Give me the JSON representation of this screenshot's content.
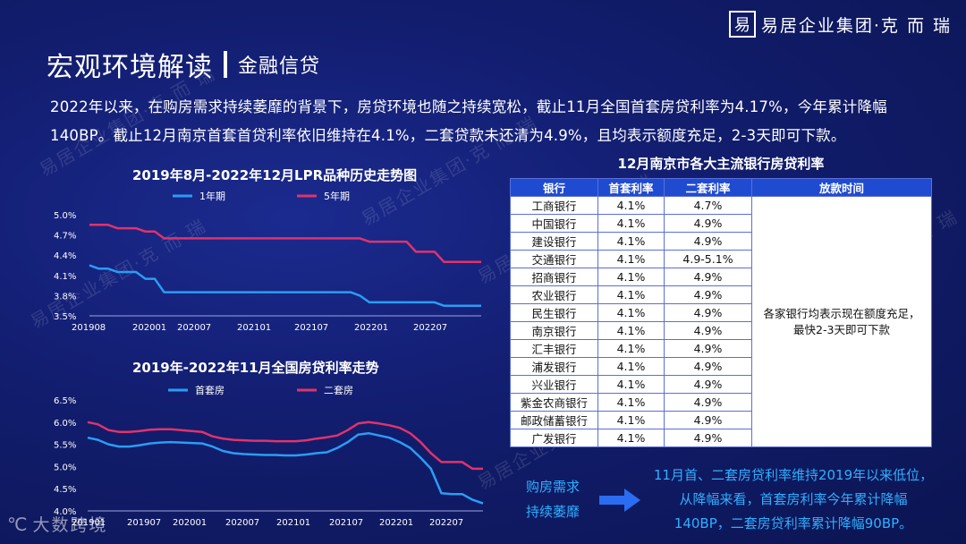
{
  "header": {
    "title": "宏观环境解读",
    "subtitle": "金融信贷"
  },
  "brand": {
    "mark": "易",
    "name": "易居企业集团·克 而 瑞"
  },
  "intro": "2022年以来，在购房需求持续萎靡的背景下，房贷环境也随之持续宽松，截止11月全国首套房贷利率为4.17%，今年累计降幅140BP。截止12月南京首套首贷利率依旧维持在4.1%，二套贷款未还清为4.9%，且均表示额度充足，2-3天即可下款。",
  "chart_data": [
    {
      "type": "line",
      "title": "2019年8月-2022年12月LPR品种历史走势图",
      "series": [
        {
          "name": "1年期",
          "color": "#2a9df4",
          "values": [
            4.25,
            4.2,
            4.2,
            4.15,
            4.15,
            4.15,
            4.05,
            4.05,
            3.85,
            3.85,
            3.85,
            3.85,
            3.85,
            3.85,
            3.85,
            3.85,
            3.85,
            3.85,
            3.85,
            3.85,
            3.85,
            3.85,
            3.85,
            3.85,
            3.85,
            3.85,
            3.85,
            3.85,
            3.85,
            3.8,
            3.7,
            3.7,
            3.7,
            3.7,
            3.7,
            3.7,
            3.7,
            3.7,
            3.65,
            3.65,
            3.65,
            3.65,
            3.65
          ]
        },
        {
          "name": "5年期",
          "color": "#e0336a",
          "values": [
            4.85,
            4.85,
            4.85,
            4.8,
            4.8,
            4.8,
            4.75,
            4.75,
            4.65,
            4.65,
            4.65,
            4.65,
            4.65,
            4.65,
            4.65,
            4.65,
            4.65,
            4.65,
            4.65,
            4.65,
            4.65,
            4.65,
            4.65,
            4.65,
            4.65,
            4.65,
            4.65,
            4.65,
            4.65,
            4.65,
            4.6,
            4.6,
            4.6,
            4.6,
            4.6,
            4.45,
            4.45,
            4.45,
            4.3,
            4.3,
            4.3,
            4.3,
            4.3
          ]
        }
      ],
      "ylim": [
        3.5,
        5.0
      ],
      "yticks": [
        "5.0%",
        "4.7%",
        "4.4%",
        "4.1%",
        "3.8%",
        "3.5%"
      ],
      "xticks": [
        "201908",
        "202001",
        "202007",
        "202101",
        "202107",
        "202201",
        "202207"
      ]
    },
    {
      "type": "line",
      "title": "2019年-2022年11月全国房贷利率走势",
      "series": [
        {
          "name": "首套房",
          "color": "#2a9df4",
          "values": [
            5.65,
            5.6,
            5.5,
            5.45,
            5.45,
            5.48,
            5.52,
            5.54,
            5.55,
            5.54,
            5.53,
            5.52,
            5.45,
            5.35,
            5.3,
            5.28,
            5.27,
            5.26,
            5.26,
            5.25,
            5.25,
            5.27,
            5.3,
            5.32,
            5.42,
            5.55,
            5.72,
            5.75,
            5.7,
            5.65,
            5.55,
            5.42,
            5.2,
            4.95,
            4.4,
            4.38,
            4.38,
            4.25,
            4.17
          ]
        },
        {
          "name": "二套房",
          "color": "#e0336a",
          "values": [
            6.0,
            5.95,
            5.82,
            5.78,
            5.78,
            5.8,
            5.83,
            5.84,
            5.84,
            5.82,
            5.8,
            5.78,
            5.68,
            5.63,
            5.6,
            5.59,
            5.58,
            5.58,
            5.57,
            5.57,
            5.57,
            5.59,
            5.63,
            5.66,
            5.7,
            5.82,
            5.97,
            6.0,
            5.97,
            5.93,
            5.87,
            5.75,
            5.55,
            5.3,
            5.1,
            5.1,
            5.1,
            4.95,
            4.95
          ]
        }
      ],
      "ylim": [
        4.0,
        6.5
      ],
      "yticks": [
        "6.5%",
        "6.0%",
        "5.5%",
        "5.0%",
        "4.5%",
        "4.0%"
      ],
      "xticks": [
        "201901",
        "201907",
        "202001",
        "202007",
        "202101",
        "202107",
        "202201",
        "202207"
      ]
    }
  ],
  "table": {
    "title": "12月南京市各大主流银行房贷利率",
    "headers": [
      "银行",
      "首套利率",
      "二套利率",
      "放款时间"
    ],
    "rows": [
      [
        "工商银行",
        "4.1%",
        "4.7%"
      ],
      [
        "中国银行",
        "4.1%",
        "4.9%"
      ],
      [
        "建设银行",
        "4.1%",
        "4.9%"
      ],
      [
        "交通银行",
        "4.1%",
        "4.9-5.1%"
      ],
      [
        "招商银行",
        "4.1%",
        "4.9%"
      ],
      [
        "农业银行",
        "4.1%",
        "4.9%"
      ],
      [
        "民生银行",
        "4.1%",
        "4.9%"
      ],
      [
        "南京银行",
        "4.1%",
        "4.9%"
      ],
      [
        "汇丰银行",
        "4.1%",
        "4.9%"
      ],
      [
        "浦发银行",
        "4.1%",
        "4.9%"
      ],
      [
        "兴业银行",
        "4.1%",
        "4.9%"
      ],
      [
        "紫金农商银行",
        "4.1%",
        "4.9%"
      ],
      [
        "邮政储蓄银行",
        "4.1%",
        "4.9%"
      ],
      [
        "广发银行",
        "4.1%",
        "4.9%"
      ]
    ],
    "note_line1": "各家银行均表示现在额度充足，",
    "note_line2": "最快2-3天即可下款"
  },
  "summary": {
    "left_line1": "购房需求",
    "left_line2": "持续萎靡",
    "right_line1": "11月首、二套房贷利率维持2019年以来低位，",
    "right_line2": "从降幅来看，首套房利率今年累计降幅",
    "right_line3": "140BP，二套房贷利率累计降幅90BP。"
  },
  "footer": {
    "glyph": "℃",
    "name": "大数跨境"
  }
}
